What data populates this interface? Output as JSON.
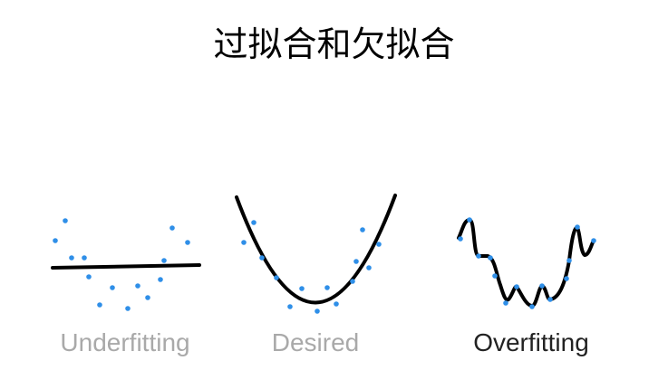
{
  "title": "过拟合和欠拟合",
  "panels": [
    {
      "label": "Underfitting",
      "label_color": "#a9a9a9"
    },
    {
      "label": "Desired",
      "label_color": "#a9a9a9"
    },
    {
      "label": "Overfitting",
      "label_color": "#222222"
    }
  ],
  "colors": {
    "curve": "#000000",
    "points": "#2f8fe8"
  }
}
